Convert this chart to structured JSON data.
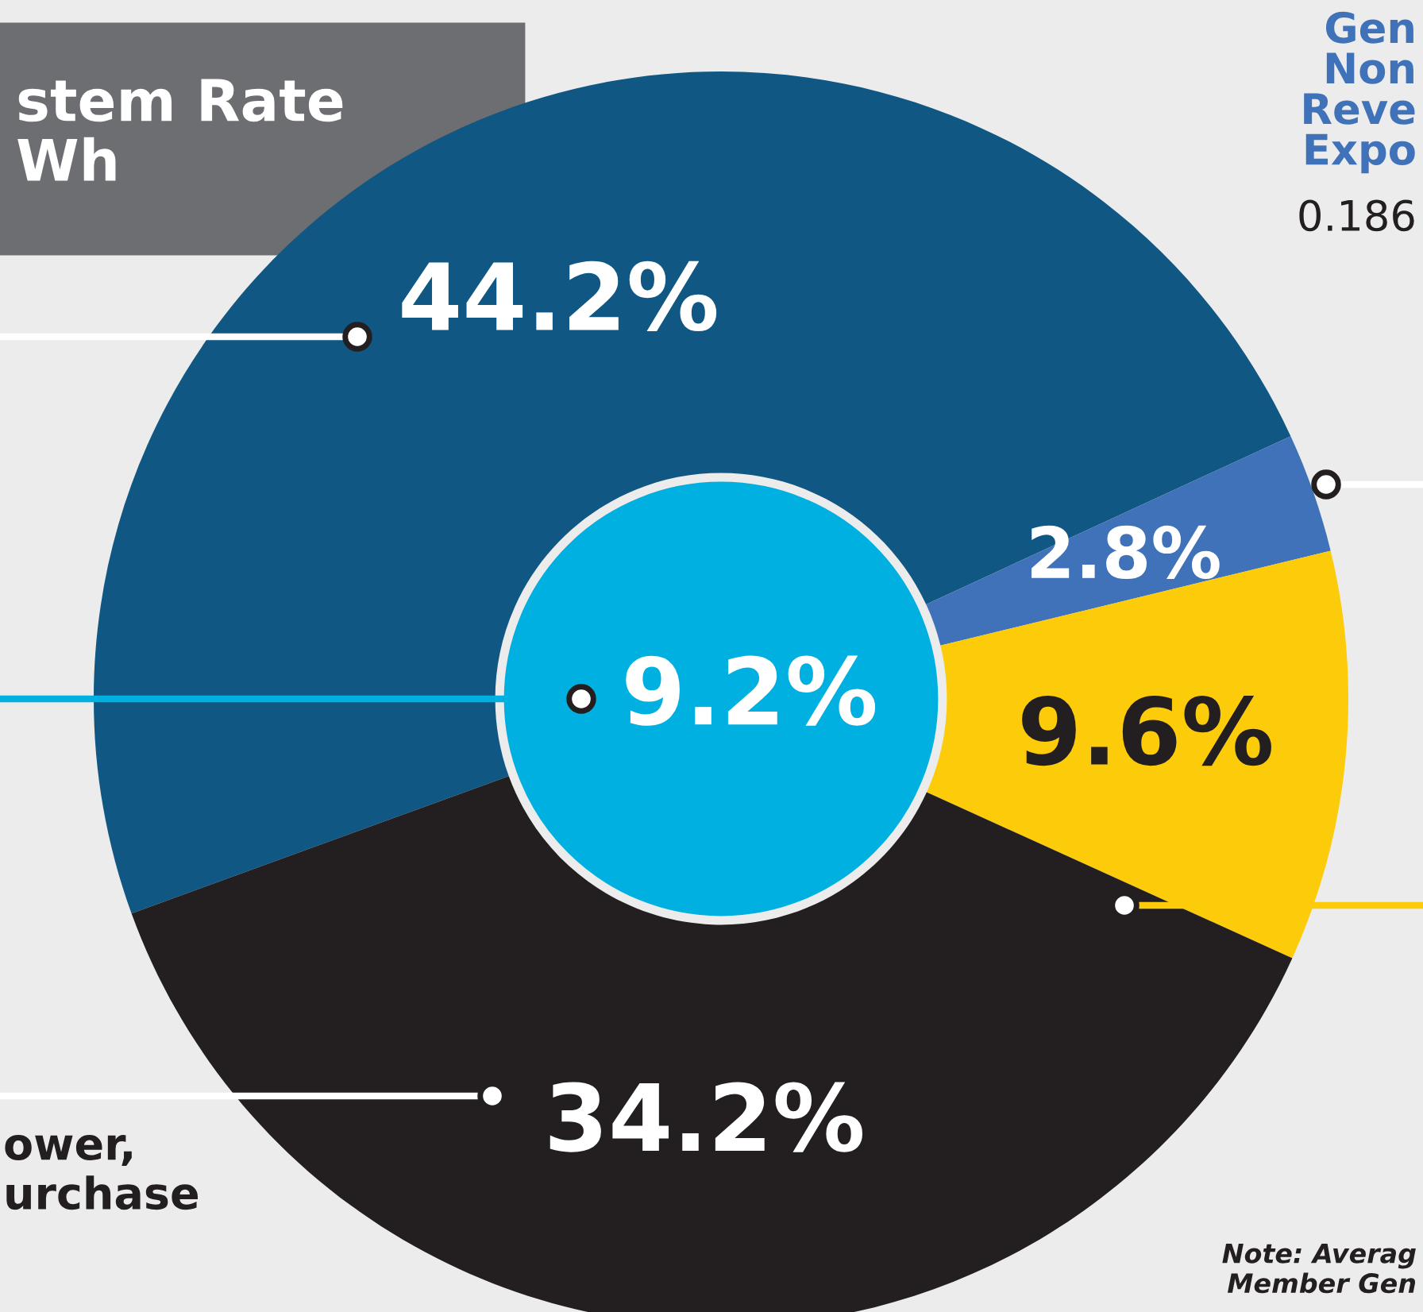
{
  "chart_data": {
    "type": "donut",
    "title": "stem Rate\nWh",
    "categories": [
      null,
      null,
      null,
      null
    ],
    "values": [
      44.2,
      2.8,
      9.6,
      34.2
    ],
    "colors": [
      "#105784",
      "#3f72b8",
      "#fccb0a",
      "#231f20"
    ],
    "value_labels": [
      "44.2%",
      "2.8%",
      "9.6%",
      "34.2%"
    ],
    "annotations": [
      "9.2%",
      "Gen\nNon\nReve\nExpo",
      "0.186",
      "ower,\nurchase",
      "Note: Averag\nMember Gen"
    ]
  }
}
